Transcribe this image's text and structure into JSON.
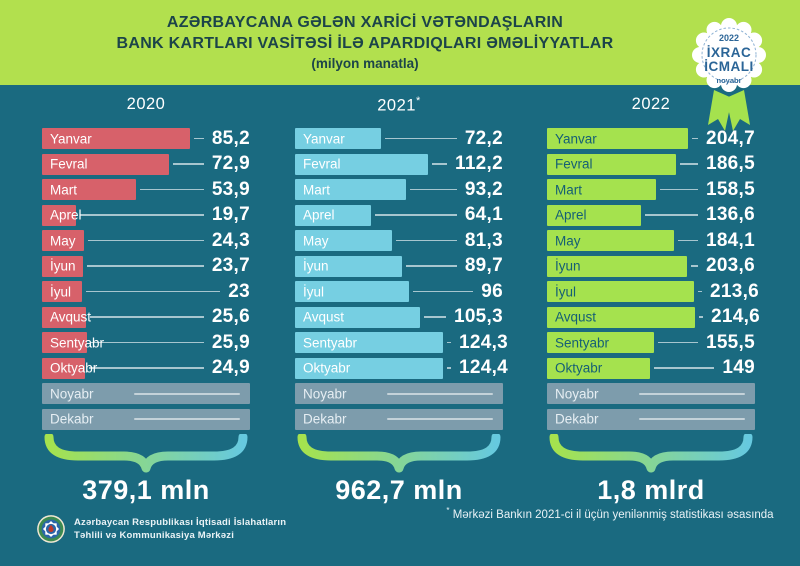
{
  "title": {
    "line1": "AZƏRBAYCANA GƏLƏN XARİCİ VƏTƏNDAŞLARIN",
    "line2": "BANK KARTLARI VASİTƏSİ İLƏ APARDIQLARI ƏMƏLİYYATLAR",
    "unit": "(milyon manatla)"
  },
  "badge": {
    "year": "2022",
    "title_line1": "İXRAC",
    "title_line2": "İCMALI",
    "month": "noyabr"
  },
  "columns": [
    {
      "year": "2020",
      "asterisk": "",
      "bar_color": "#d7616a",
      "label_color": "#ffffff",
      "total": "379,1 mln",
      "rows": [
        {
          "month": "Yanvar",
          "value": "85,2",
          "v": 85.2
        },
        {
          "month": "Fevral",
          "value": "72,9",
          "v": 72.9
        },
        {
          "month": "Mart",
          "value": "53,9",
          "v": 53.9
        },
        {
          "month": "Aprel",
          "value": "19,7",
          "v": 19.7
        },
        {
          "month": "May",
          "value": "24,3",
          "v": 24.3
        },
        {
          "month": "İyun",
          "value": "23,7",
          "v": 23.7
        },
        {
          "month": "İyul",
          "value": "23",
          "v": 23
        },
        {
          "month": "Avqust",
          "value": "25,6",
          "v": 25.6
        },
        {
          "month": "Sentyabr",
          "value": "25,9",
          "v": 25.9
        },
        {
          "month": "Oktyabr",
          "value": "24,9",
          "v": 24.9
        }
      ],
      "no_data_rows": [
        "Noyabr",
        "Dekabr"
      ]
    },
    {
      "year": "2021",
      "asterisk": "*",
      "bar_color": "#76cfe2",
      "label_color": "#ffffff",
      "total": "962,7 mln",
      "rows": [
        {
          "month": "Yanvar",
          "value": "72,2",
          "v": 72.2
        },
        {
          "month": "Fevral",
          "value": "112,2",
          "v": 112.2
        },
        {
          "month": "Mart",
          "value": "93,2",
          "v": 93.2
        },
        {
          "month": "Aprel",
          "value": "64,1",
          "v": 64.1
        },
        {
          "month": "May",
          "value": "81,3",
          "v": 81.3
        },
        {
          "month": "İyun",
          "value": "89,7",
          "v": 89.7
        },
        {
          "month": "İyul",
          "value": "96",
          "v": 96
        },
        {
          "month": "Avqust",
          "value": "105,3",
          "v": 105.3
        },
        {
          "month": "Sentyabr",
          "value": "124,3",
          "v": 124.3
        },
        {
          "month": "Oktyabr",
          "value": "124,4",
          "v": 124.4
        }
      ],
      "no_data_rows": [
        "Noyabr",
        "Dekabr"
      ]
    },
    {
      "year": "2022",
      "asterisk": "",
      "bar_color": "#a5e24e",
      "label_color": "#155f75",
      "total": "1,8 mlrd",
      "rows": [
        {
          "month": "Yanvar",
          "value": "204,7",
          "v": 204.7
        },
        {
          "month": "Fevral",
          "value": "186,5",
          "v": 186.5
        },
        {
          "month": "Mart",
          "value": "158,5",
          "v": 158.5
        },
        {
          "month": "Aprel",
          "value": "136,6",
          "v": 136.6
        },
        {
          "month": "May",
          "value": "184,1",
          "v": 184.1
        },
        {
          "month": "İyun",
          "value": "203,6",
          "v": 203.6
        },
        {
          "month": "İyul",
          "value": "213,6",
          "v": 213.6
        },
        {
          "month": "Avqust",
          "value": "214,6",
          "v": 214.6
        },
        {
          "month": "Sentyabr",
          "value": "155,5",
          "v": 155.5
        },
        {
          "month": "Oktyabr",
          "value": "149",
          "v": 149
        }
      ],
      "no_data_rows": [
        "Noyabr",
        "Dekabr"
      ]
    }
  ],
  "footnote": {
    "star": "*",
    "text": " Mərkəzi Bankın 2021-ci il üçün yenilənmiş statistikası əsasında"
  },
  "footer": {
    "line1": "Azərbaycan Respublikası İqtisadi İslahatların",
    "line2": "Təhlili və Kommunikasiya Mərkəzi"
  },
  "colors": {
    "background": "#1a6a80",
    "header_background": "#b2e04e",
    "title_text": "#1c4449",
    "bar_2020": "#d7616a",
    "bar_2021": "#76cfe2",
    "bar_2022": "#a5e24e",
    "bar_no_data": "#7d9cac",
    "badge_text": "#2b6597",
    "brace_gradient_start": "#a5e24e",
    "brace_gradient_end": "#66c9df"
  },
  "chart_data": {
    "type": "bar",
    "orientation": "horizontal",
    "title": "Azərbaycana gələn xarici vətəndaşların bank kartları vasitəsi ilə apardıqları əməliyyatlar",
    "unit": "milyon manatla",
    "categories": [
      "Yanvar",
      "Fevral",
      "Mart",
      "Aprel",
      "May",
      "İyun",
      "İyul",
      "Avqust",
      "Sentyabr",
      "Oktyabr"
    ],
    "no_data_categories": [
      "Noyabr",
      "Dekabr"
    ],
    "series": [
      {
        "name": "2020",
        "color": "#d7616a",
        "values": [
          85.2,
          72.9,
          53.9,
          19.7,
          24.3,
          23.7,
          23,
          25.6,
          25.9,
          24.9
        ],
        "total_label": "379,1 mln"
      },
      {
        "name": "2021",
        "color": "#76cfe2",
        "values": [
          72.2,
          112.2,
          93.2,
          64.1,
          81.3,
          89.7,
          96,
          105.3,
          124.3,
          124.4
        ],
        "total_label": "962,7 mln",
        "note": "yenilənmiş statistika"
      },
      {
        "name": "2022",
        "color": "#a5e24e",
        "values": [
          204.7,
          186.5,
          158.5,
          136.6,
          184.1,
          203.6,
          213.6,
          214.6,
          155.5,
          149
        ],
        "total_label": "1,8 mlrd"
      }
    ],
    "footnote": "* Mərkəzi Bankın 2021-ci il üçün yenilənmiş statistikası əsasında",
    "legend_position": "none",
    "grid": false
  }
}
